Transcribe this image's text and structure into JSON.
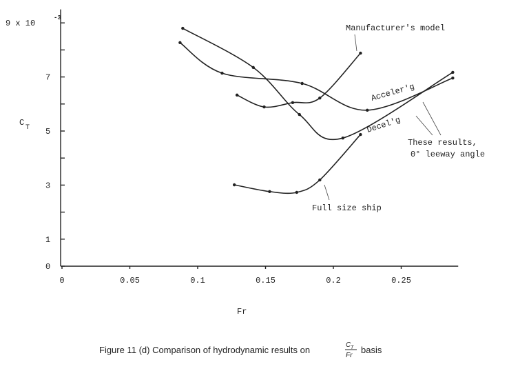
{
  "chart_data": {
    "type": "line",
    "x_label": "Fr",
    "y_label": "C",
    "y_label_sub": "T",
    "y_exponent": "-3",
    "caption": "Figure 11 (d) Comparison of hydrodynamic results on",
    "caption_num": "C",
    "caption_num_sub": "T",
    "caption_den": "Fr",
    "caption_end": "basis",
    "xlim": [
      0,
      0.292
    ],
    "ylim": [
      0,
      9.5
    ],
    "xticks": [
      0,
      0.05,
      0.1,
      0.15,
      0.2,
      0.25
    ],
    "yticks": [
      0,
      1,
      3,
      5,
      7,
      {
        "value": 9,
        "label": "9 x 10"
      }
    ],
    "yminor": [
      2,
      4,
      6,
      8
    ],
    "color": "#222",
    "annotations": [
      "Manufacturer's model",
      "Acceler'g",
      "Decel'g",
      "These results,",
      "0° leeway angle",
      "Full size ship"
    ],
    "series": [
      {
        "name": "Manufacturer's model",
        "x": [
          0.129,
          0.149,
          0.17,
          0.19,
          0.22
        ],
        "values": [
          6.33,
          5.89,
          6.05,
          6.22,
          7.88
        ]
      },
      {
        "name": "Acceler'g",
        "x": [
          0.087,
          0.118,
          0.177,
          0.225,
          0.288
        ],
        "values": [
          8.27,
          7.14,
          6.76,
          5.77,
          6.96
        ]
      },
      {
        "name": "Decel'g",
        "x": [
          0.089,
          0.141,
          0.175,
          0.207,
          0.288
        ],
        "values": [
          8.8,
          7.35,
          5.61,
          4.74,
          7.17
        ]
      },
      {
        "name": "Full size ship",
        "x": [
          0.127,
          0.153,
          0.173,
          0.19,
          0.22
        ],
        "values": [
          3.01,
          2.76,
          2.73,
          3.19,
          4.87
        ]
      }
    ]
  }
}
